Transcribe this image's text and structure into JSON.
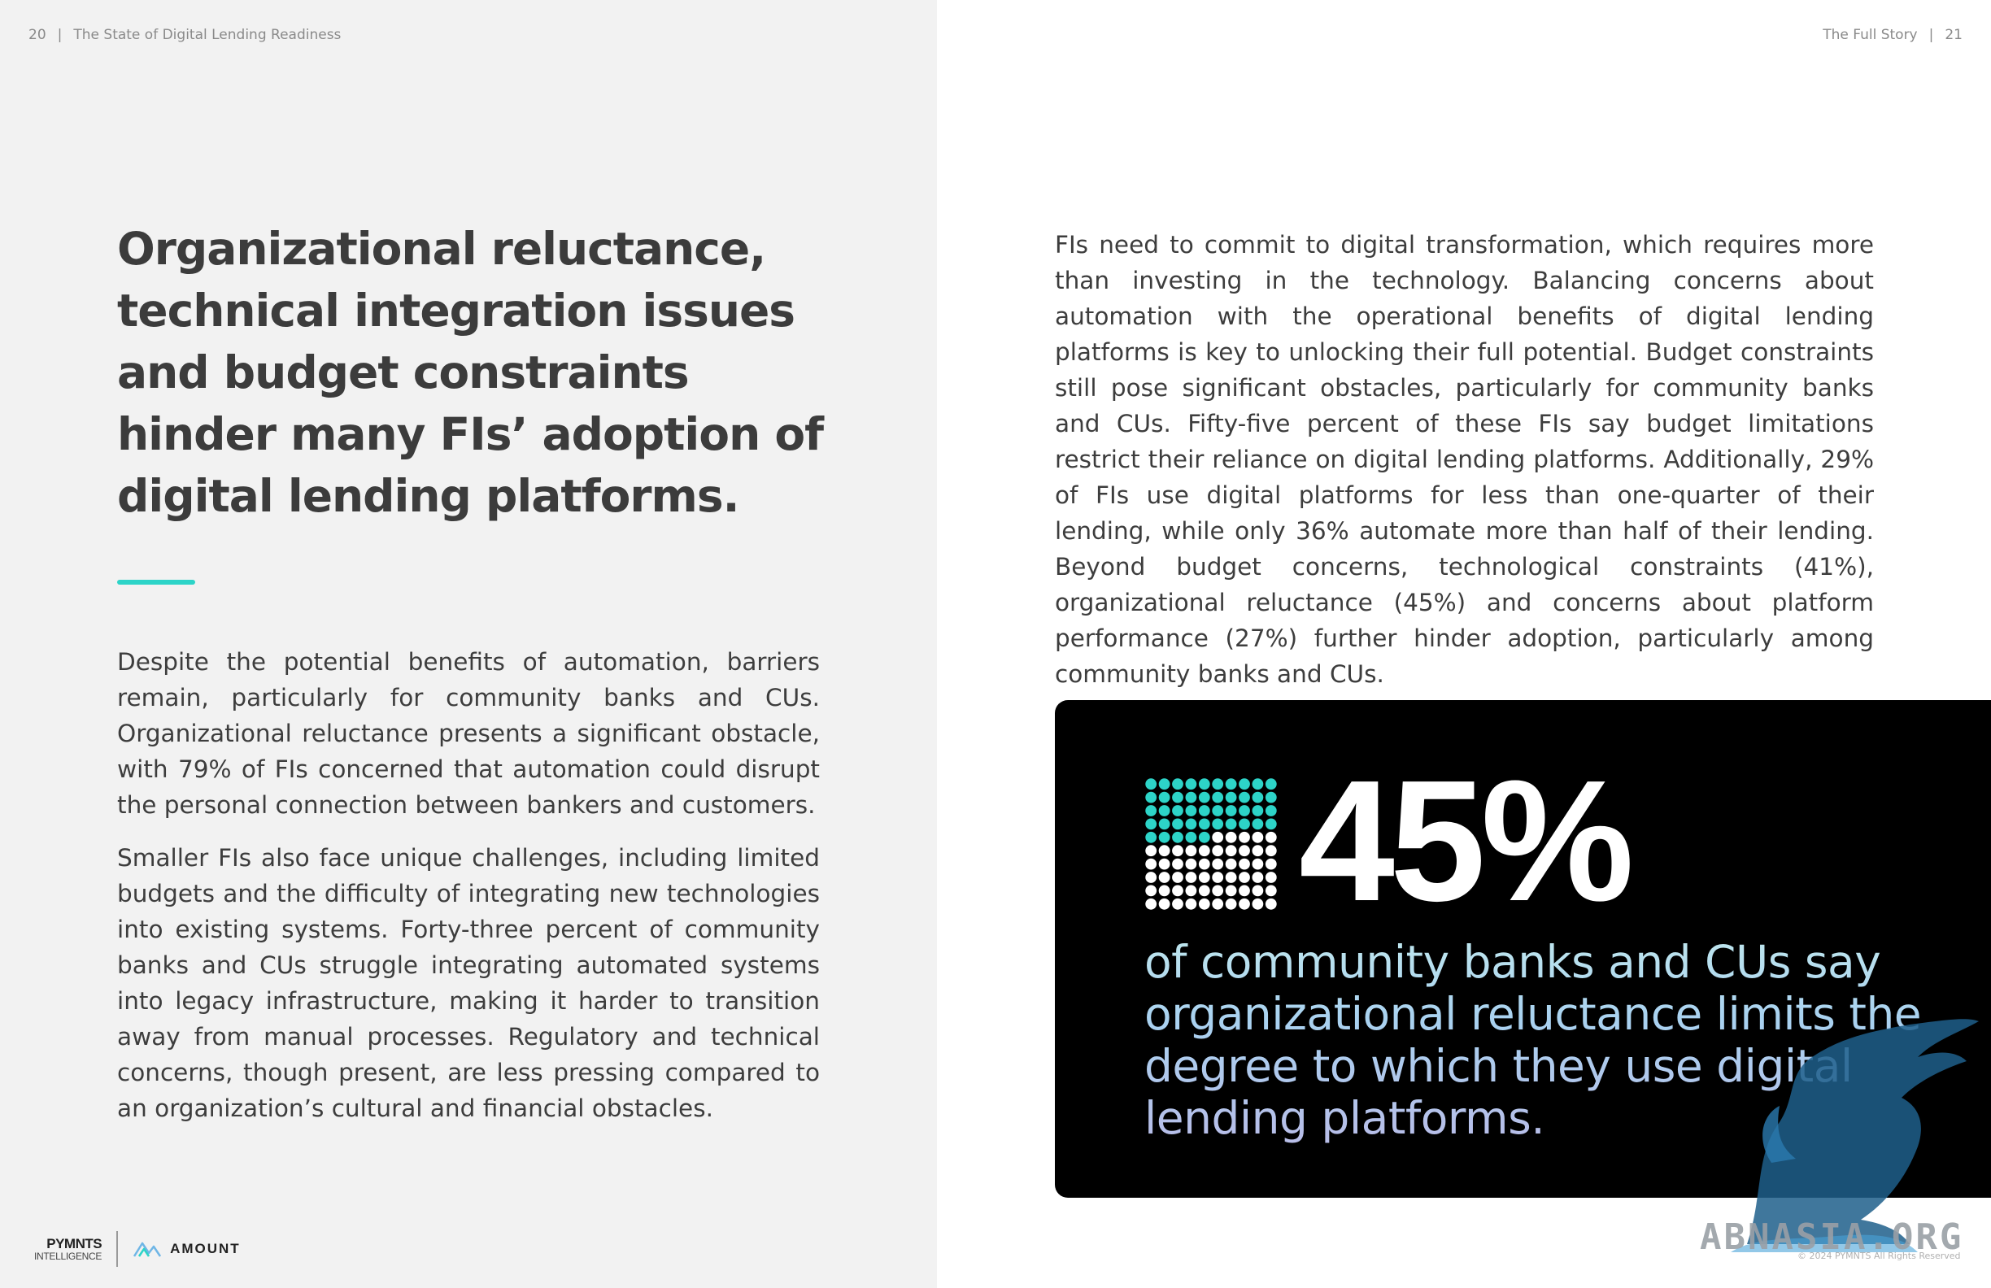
{
  "header": {
    "left_page_number": "20",
    "left_title": "The State of Digital Lending Readiness",
    "right_title": "The Full Story",
    "right_page_number": "21",
    "separator": "|"
  },
  "headline": "Organizational reluctance, technical integration issues and budget constraints hinder many FIs’ adoption of digital lending platforms.",
  "left_body": [
    "Despite the potential benefits of automation, barriers remain, particularly for community banks and CUs. Organizational reluctance presents a significant obstacle, with 79% of FIs concerned that automation could disrupt the personal connection between bankers and customers.",
    "Smaller FIs also face unique challenges, including limited budgets and the difficulty of integrating new technologies into existing systems. Forty-three percent of community banks and CUs struggle integrating automated systems into legacy infrastructure, making it harder to transition away from manual processes. Regulatory and technical concerns, though present, are less pressing compared to an organization’s cultural and financial obstacles."
  ],
  "right_body": "FIs need to commit to digital transformation, which requires more than investing in the technology. Balancing concerns about automation with the operational benefits of digital lending platforms is key to unlocking their full potential. Budget constraints still pose significant obstacles, particularly for community banks and CUs. Fifty-five percent of these FIs say budget limitations restrict their reliance on digital lending platforms. Additionally, 29% of FIs use digital platforms for less than one-quarter of their lending, while only 36% automate more than half of their lending. Beyond budget concerns, technological constraints (41%), organizational reluctance (45%) and concerns about platform performance (27%) further hinder adoption, particularly among community banks and CUs.",
  "stat": {
    "value": "45%",
    "fraction_filled": 0.45,
    "grid_size": 10,
    "caption": "of community banks and CUs say organizational reluctance limits the degree to which they use digital lending platforms.",
    "colors": {
      "filled": "#2dd4c8",
      "empty": "#ffffff",
      "background": "#000000"
    }
  },
  "footer": {
    "logo_primary_top": "PYMNTS",
    "logo_primary_bottom": "INTELLIGENCE",
    "logo_partner": "AMOUNT",
    "copyright": "© 2024 PYMNTS All Rights Reserved"
  },
  "watermark": {
    "text": "ABNASIA.ORG"
  },
  "colors": {
    "accent": "#2dd4c8",
    "left_bg": "#f2f2f2",
    "text": "#3d3d3d"
  }
}
